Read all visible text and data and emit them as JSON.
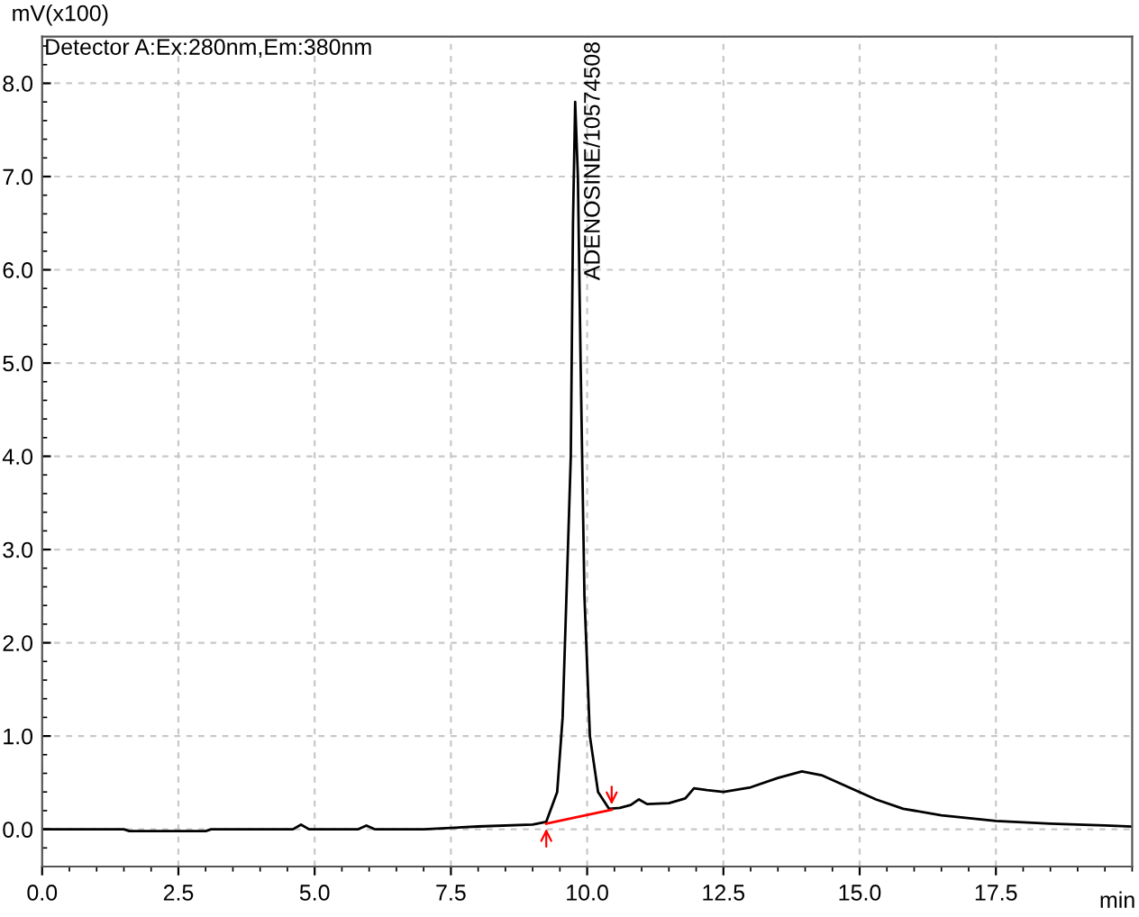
{
  "chart_data": {
    "type": "line",
    "ylabel": "mV(x100)",
    "xlabel": "min",
    "annotations": [
      "Detector A:Ex:280nm,Em:380nm",
      {
        "text": "ADENOSINE/10574508",
        "x": 9.78,
        "y": 7.8
      }
    ],
    "xlim": [
      0,
      20
    ],
    "ylim": [
      -0.4,
      8.5
    ],
    "xticks": [
      {
        "value": 0,
        "label": "0.0"
      },
      2.5,
      {
        "value": 5,
        "label": "5.0"
      },
      7.5,
      {
        "value": 10,
        "label": "10.0"
      },
      12.5,
      {
        "value": 15,
        "label": "15.0"
      },
      17.5
    ],
    "yticks": [
      {
        "value": 0,
        "label": "0.0"
      },
      {
        "value": 1,
        "label": "1.0"
      },
      {
        "value": 2,
        "label": "2.0"
      },
      {
        "value": 3,
        "label": "3.0"
      },
      {
        "value": 4,
        "label": "4.0"
      },
      {
        "value": 5,
        "label": "5.0"
      },
      {
        "value": 6,
        "label": "6.0"
      },
      {
        "value": 7,
        "label": "7.0"
      },
      {
        "value": 8,
        "label": "8.0"
      }
    ],
    "grid": true,
    "series": [
      {
        "color": "#000000",
        "x": [
          0,
          1.5,
          1.6,
          3.0,
          3.1,
          4.6,
          4.75,
          4.9,
          5.8,
          5.95,
          6.1,
          7.0,
          8.0,
          9.0,
          9.25,
          9.45,
          9.55,
          9.62,
          9.7,
          9.74,
          9.78,
          9.83,
          9.88,
          9.95,
          10.05,
          10.2,
          10.4,
          10.6,
          10.8,
          10.95,
          11.1,
          11.5,
          11.8,
          11.96,
          12.2,
          12.5,
          13.0,
          13.5,
          13.94,
          14.3,
          14.8,
          15.3,
          15.8,
          16.5,
          17.5,
          18.5,
          19.5,
          20
        ],
        "values": [
          0,
          0,
          -0.02,
          -0.02,
          0,
          0,
          0.05,
          0,
          0,
          0.04,
          0,
          0,
          0.03,
          0.05,
          0.08,
          0.4,
          1.2,
          2.5,
          4.0,
          6.5,
          7.8,
          7.0,
          5.0,
          2.5,
          1.0,
          0.4,
          0.22,
          0.23,
          0.26,
          0.32,
          0.27,
          0.28,
          0.33,
          0.44,
          0.42,
          0.4,
          0.45,
          0.55,
          0.62,
          0.58,
          0.45,
          0.32,
          0.22,
          0.15,
          0.09,
          0.06,
          0.04,
          0.03
        ]
      },
      {
        "color": "#ff0000",
        "x": [
          9.25,
          10.45
        ],
        "values": [
          0.06,
          0.21
        ]
      }
    ]
  }
}
